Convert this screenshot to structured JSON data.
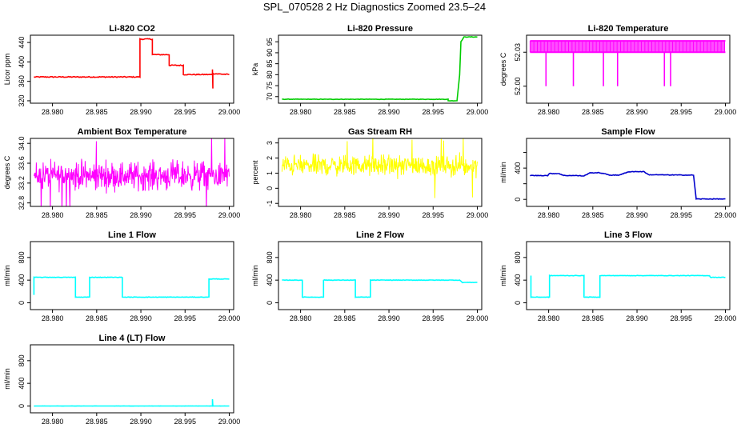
{
  "title": "SPL_070528  2 Hz Diagnostics Zoomed 23.5–24",
  "chart_data": [
    {
      "type": "line",
      "title": "Li-820 CO2",
      "ylabel": "Licor ppm",
      "color": "#ff0000",
      "xlim": [
        28.9775,
        29.0005
      ],
      "ylim": [
        315,
        455
      ],
      "yticks": [
        320,
        360,
        400,
        440
      ],
      "yticklabels": [
        "320",
        "360",
        "400",
        "440"
      ],
      "noise": 1,
      "x": [
        28.9779,
        28.9899,
        28.9899,
        28.9913,
        28.9913,
        28.9932,
        28.9932,
        28.9948,
        28.9948,
        28.9981,
        28.9981,
        28.99815,
        28.99815,
        29.0
      ],
      "y": [
        369,
        369,
        447,
        447,
        415,
        415,
        393,
        393,
        374,
        374,
        385,
        346,
        376,
        374
      ]
    },
    {
      "type": "line",
      "title": "Li-820 Pressure",
      "ylabel": "kPa",
      "color": "#00cc00",
      "xlim": [
        28.9775,
        29.0005
      ],
      "ylim": [
        67,
        98
      ],
      "yticks": [
        70,
        75,
        80,
        85,
        90,
        95
      ],
      "yticklabels": [
        "70",
        "75",
        "80",
        "85",
        "90",
        "95"
      ],
      "noise": 0.1,
      "x": [
        28.9779,
        28.9967,
        28.9967,
        28.9977,
        28.998,
        28.99815,
        28.9985,
        29.0
      ],
      "y": [
        68.8,
        68.8,
        68.1,
        68.1,
        80,
        95,
        97.2,
        97.2
      ]
    },
    {
      "type": "spikes",
      "title": "Li-820 Temperature",
      "ylabel": "degrees C",
      "color": "#ff00ff",
      "xlim": [
        28.9775,
        29.0005
      ],
      "ylim": [
        51.985,
        52.045
      ],
      "yticks": [
        52.0,
        52.03
      ],
      "yticklabels": [
        "52.00",
        "52.03"
      ],
      "base": 52.03,
      "high": 52.04,
      "low": 52.0,
      "dips": [
        28.9797,
        28.9828,
        28.9862,
        28.9878,
        28.9931,
        28.9938
      ]
    },
    {
      "type": "noise",
      "title": "Ambient Box Temperature",
      "ylabel": "degrees C",
      "color": "#ff00ff",
      "xlim": [
        28.9775,
        29.0005
      ],
      "ylim": [
        32.73,
        34.1
      ],
      "yticks": [
        32.8,
        33.2,
        33.6,
        34.0
      ],
      "yticklabels": [
        "32.8",
        "33.2",
        "33.6",
        "34.0"
      ],
      "mean": 33.35,
      "amp": 0.42,
      "x0": 28.9779,
      "x1": 29.0
    },
    {
      "type": "noise",
      "title": "Gas Stream RH",
      "ylabel": "percent",
      "color": "#ffff00",
      "xlim": [
        28.9775,
        29.0005
      ],
      "ylim": [
        -1.2,
        3.3
      ],
      "yticks": [
        -1,
        0,
        1,
        2,
        3
      ],
      "yticklabels": [
        "-1",
        "0",
        "1",
        "2",
        "3"
      ],
      "mean": 1.5,
      "amp": 1.0,
      "x0": 28.9779,
      "x1": 29.0
    },
    {
      "type": "line",
      "title": "Sample Flow",
      "ylabel": "ml/min",
      "color": "#0000cc",
      "xlim": [
        28.9775,
        29.0005
      ],
      "ylim": [
        -90,
        780
      ],
      "yticks": [
        0,
        200,
        400,
        600
      ],
      "yticklabels": [
        "0",
        "",
        "400",
        ""
      ],
      "noise": 4,
      "x": [
        28.9779,
        28.9799,
        28.9801,
        28.9812,
        28.9817,
        28.983,
        28.984,
        28.9847,
        28.9858,
        28.987,
        28.9879,
        28.9892,
        28.9908,
        28.9913,
        28.9964,
        28.9967,
        29.0
      ],
      "y": [
        305,
        305,
        330,
        330,
        305,
        305,
        300,
        340,
        340,
        310,
        310,
        355,
        355,
        315,
        310,
        5,
        5
      ]
    },
    {
      "type": "line",
      "title": "Line 1 Flow",
      "ylabel": "ml/min",
      "color": "#00ffff",
      "xlim": [
        28.9775,
        29.0005
      ],
      "ylim": [
        -120,
        1080
      ],
      "yticks": [
        0,
        400,
        800
      ],
      "yticklabels": [
        "0",
        "400",
        "800"
      ],
      "noise": 4,
      "x": [
        28.9779,
        28.9779,
        28.9826,
        28.9826,
        28.9842,
        28.9842,
        28.9879,
        28.9879,
        28.9977,
        28.9977,
        29.0
      ],
      "y": [
        140,
        450,
        450,
        100,
        100,
        450,
        450,
        100,
        100,
        420,
        420
      ]
    },
    {
      "type": "line",
      "title": "Line 2 Flow",
      "ylabel": "ml/min",
      "color": "#00ffff",
      "xlim": [
        28.9775,
        29.0005
      ],
      "ylim": [
        -120,
        1080
      ],
      "yticks": [
        0,
        400,
        800
      ],
      "yticklabels": [
        "0",
        "400",
        "800"
      ],
      "noise": 4,
      "x": [
        28.9779,
        28.9802,
        28.9802,
        28.9826,
        28.9826,
        28.9862,
        28.9862,
        28.9879,
        28.9879,
        28.998,
        28.9983,
        29.0
      ],
      "y": [
        400,
        400,
        100,
        100,
        400,
        400,
        100,
        100,
        400,
        400,
        360,
        360
      ]
    },
    {
      "type": "line",
      "title": "Line 3 Flow",
      "ylabel": "ml/min",
      "color": "#00ffff",
      "xlim": [
        28.9775,
        29.0005
      ],
      "ylim": [
        -120,
        1080
      ],
      "yticks": [
        0,
        400,
        800
      ],
      "yticklabels": [
        "0",
        "400",
        "800"
      ],
      "noise": 4,
      "x": [
        28.978,
        28.978,
        28.98,
        28.98,
        28.9801,
        28.9801,
        28.984,
        28.984,
        28.9858,
        28.9858,
        28.9982,
        28.9983,
        29.0
      ],
      "y": [
        480,
        100,
        100,
        100,
        100,
        480,
        480,
        100,
        100,
        480,
        480,
        450,
        450
      ]
    },
    {
      "type": "line",
      "title": "Line 4 (LT) Flow",
      "ylabel": "ml/min",
      "color": "#00ffff",
      "xlim": [
        28.9775,
        29.0005
      ],
      "ylim": [
        -120,
        1080
      ],
      "yticks": [
        0,
        400,
        800
      ],
      "yticklabels": [
        "0",
        "400",
        "800"
      ],
      "noise": 1,
      "x": [
        28.9779,
        28.9981,
        28.9981,
        28.99815,
        28.99815,
        29.0
      ],
      "y": [
        0,
        0,
        120,
        0,
        0,
        0
      ]
    }
  ],
  "xticks": [
    28.98,
    28.985,
    28.99,
    28.995,
    29.0
  ],
  "xticklabels": [
    "28.980",
    "28.985",
    "28.990",
    "28.995",
    "29.000"
  ]
}
